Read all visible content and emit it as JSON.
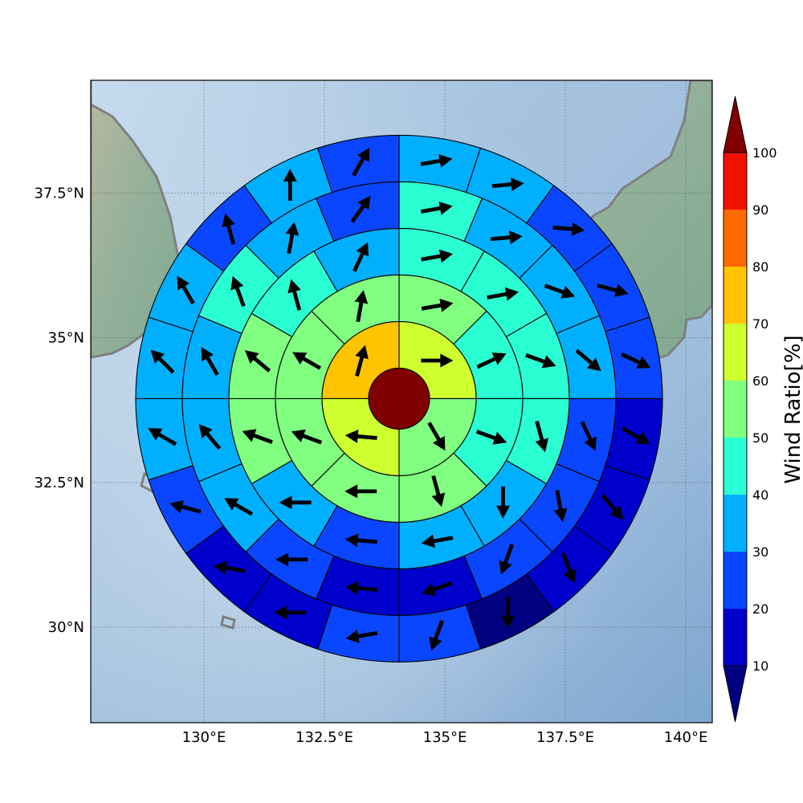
{
  "map": {
    "lon_range": [
      127.65,
      140.55
    ],
    "lat_range": [
      28.35,
      39.45
    ],
    "center": {
      "lon": 134.05,
      "lat": 33.95
    },
    "gridlines": true,
    "x_ticks": [
      {
        "value": 130.0,
        "label": "130°E"
      },
      {
        "value": 132.5,
        "label": "132.5°E"
      },
      {
        "value": 135.0,
        "label": "135°E"
      },
      {
        "value": 137.5,
        "label": "137.5°E"
      },
      {
        "value": 140.0,
        "label": "140°E"
      }
    ],
    "y_ticks": [
      {
        "value": 30.0,
        "label": "30°N"
      },
      {
        "value": 32.5,
        "label": "32.5°N"
      },
      {
        "value": 35.0,
        "label": "35°N"
      },
      {
        "value": 37.5,
        "label": "37.5°N"
      }
    ]
  },
  "colorbar": {
    "title": "Wind Ratio[%]",
    "levels": [
      10,
      20,
      30,
      40,
      50,
      60,
      70,
      80,
      90,
      100
    ],
    "tick_labels": [
      "10",
      "20",
      "30",
      "40",
      "50",
      "60",
      "70",
      "80",
      "90",
      "100"
    ],
    "colors": [
      "#0000cd",
      "#0a46ff",
      "#00b0ff",
      "#2affd4",
      "#80ff80",
      "#ceff2e",
      "#ffc400",
      "#ff6a00",
      "#f21000"
    ],
    "under_color": "#000080",
    "over_color": "#800000"
  },
  "chart_data": {
    "type": "polar_sector_map",
    "title": "",
    "ring_count": 5,
    "sector_direction": "clockwise from north",
    "center_value": 100,
    "rings": [
      {
        "ring": 1,
        "sectors": 4,
        "values": [
          65,
          55,
          65,
          75
        ],
        "arrow_dirs": [
          90,
          150,
          275,
          15
        ]
      },
      {
        "ring": 2,
        "sectors": 8,
        "values": [
          55,
          45,
          45,
          55,
          55,
          55,
          55,
          55
        ],
        "arrow_dirs": [
          80,
          65,
          110,
          165,
          270,
          290,
          300,
          10
        ]
      },
      {
        "ring": 3,
        "sectors": 12,
        "values": [
          45,
          45,
          45,
          45,
          35,
          35,
          25,
          35,
          55,
          55,
          45,
          35
        ],
        "arrow_dirs": [
          80,
          80,
          110,
          165,
          180,
          260,
          275,
          270,
          290,
          310,
          345,
          25
        ]
      },
      {
        "ring": 4,
        "sectors": 16,
        "values": [
          45,
          35,
          35,
          35,
          25,
          25,
          25,
          15,
          15,
          25,
          35,
          35,
          35,
          45,
          35,
          25
        ],
        "arrow_dirs": [
          80,
          85,
          110,
          130,
          155,
          170,
          200,
          250,
          275,
          270,
          300,
          320,
          330,
          340,
          10,
          35
        ]
      },
      {
        "ring": 5,
        "sectors": 20,
        "values": [
          35,
          35,
          25,
          25,
          25,
          15,
          15,
          15,
          5,
          25,
          25,
          15,
          15,
          25,
          35,
          35,
          35,
          25,
          35,
          25
        ],
        "arrow_dirs": [
          80,
          85,
          95,
          105,
          115,
          120,
          140,
          160,
          180,
          200,
          260,
          270,
          280,
          285,
          300,
          315,
          330,
          345,
          0,
          30
        ]
      }
    ]
  }
}
